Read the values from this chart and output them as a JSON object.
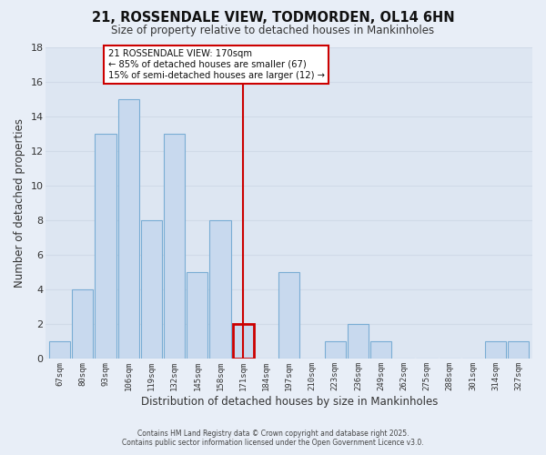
{
  "title_line1": "21, ROSSENDALE VIEW, TODMORDEN, OL14 6HN",
  "title_line2": "Size of property relative to detached houses in Mankinholes",
  "xlabel": "Distribution of detached houses by size in Mankinholes",
  "ylabel": "Number of detached properties",
  "categories": [
    "67sqm",
    "80sqm",
    "93sqm",
    "106sqm",
    "119sqm",
    "132sqm",
    "145sqm",
    "158sqm",
    "171sqm",
    "184sqm",
    "197sqm",
    "210sqm",
    "223sqm",
    "236sqm",
    "249sqm",
    "262sqm",
    "275sqm",
    "288sqm",
    "301sqm",
    "314sqm",
    "327sqm"
  ],
  "values": [
    1,
    4,
    13,
    15,
    8,
    13,
    5,
    8,
    2,
    0,
    5,
    0,
    1,
    2,
    1,
    0,
    0,
    0,
    0,
    1,
    1
  ],
  "bar_color": "#c8d9ee",
  "bar_edge_color": "#7aadd4",
  "highlight_bar_index": 8,
  "highlight_bar_edge_color": "#cc0000",
  "vline_color": "#cc0000",
  "ylim": [
    0,
    18
  ],
  "yticks": [
    0,
    2,
    4,
    6,
    8,
    10,
    12,
    14,
    16,
    18
  ],
  "annotation_title": "21 ROSSENDALE VIEW: 170sqm",
  "annotation_line1": "← 85% of detached houses are smaller (67)",
  "annotation_line2": "15% of semi-detached houses are larger (12) →",
  "annotation_box_edge_color": "#cc0000",
  "footer_line1": "Contains HM Land Registry data © Crown copyright and database right 2025.",
  "footer_line2": "Contains public sector information licensed under the Open Government Licence v3.0.",
  "background_color": "#e8eef7",
  "grid_color": "#d0dae8",
  "plot_bg_color": "#dde6f2"
}
